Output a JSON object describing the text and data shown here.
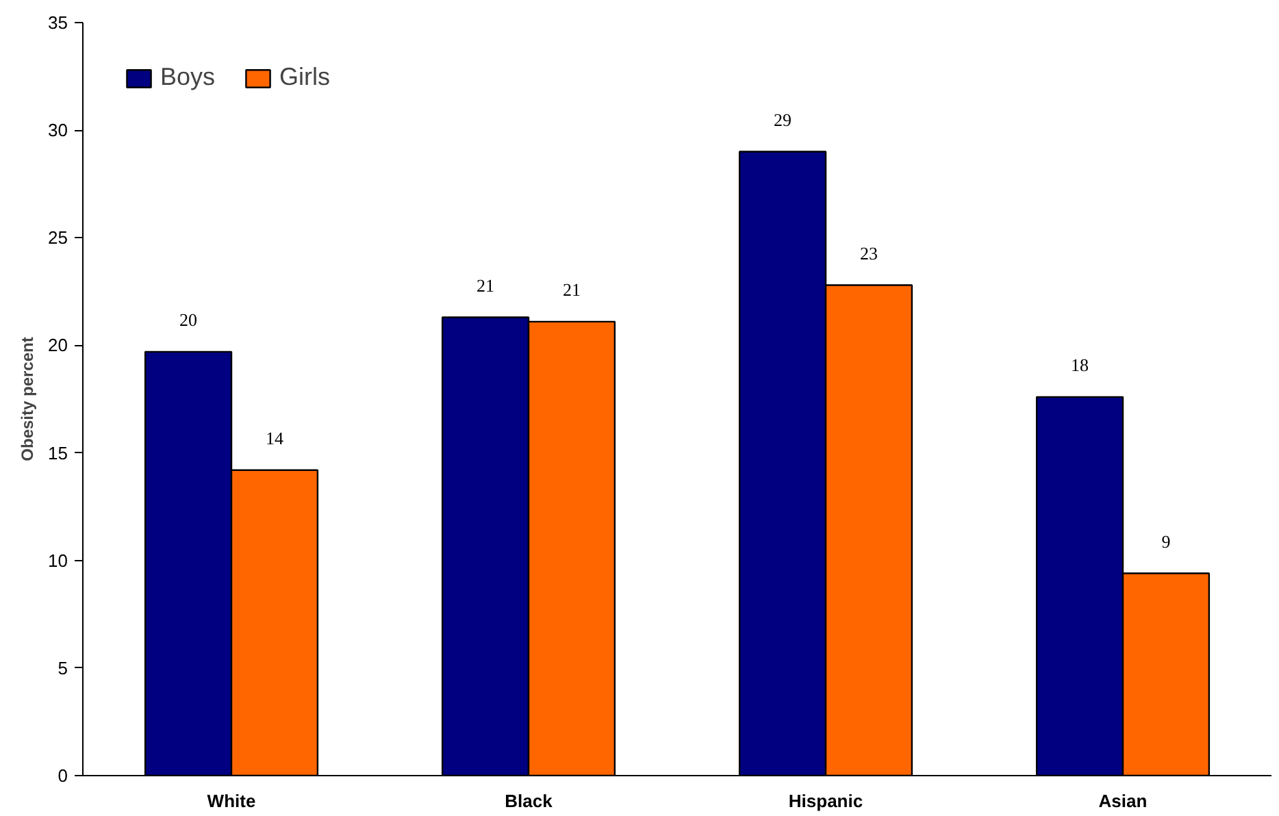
{
  "chart_data": {
    "type": "bar",
    "ylabel": "Obesity percent",
    "categories": [
      "White",
      "Black",
      "Hispanic",
      "Asian"
    ],
    "series": [
      {
        "name": "Boys",
        "color": "#000080",
        "values": [
          19.7,
          21.3,
          29.0,
          17.6
        ],
        "value_labels": [
          "20",
          "21",
          "29",
          "18"
        ]
      },
      {
        "name": "Girls",
        "color": "#ff6600",
        "values": [
          14.2,
          21.1,
          22.8,
          9.4
        ],
        "value_labels": [
          "14",
          "21",
          "23",
          "9"
        ]
      }
    ],
    "ylim": [
      0,
      35
    ],
    "yticks": [
      0,
      5,
      10,
      15,
      20,
      25,
      30,
      35
    ],
    "grid": false,
    "legend": "top left"
  }
}
